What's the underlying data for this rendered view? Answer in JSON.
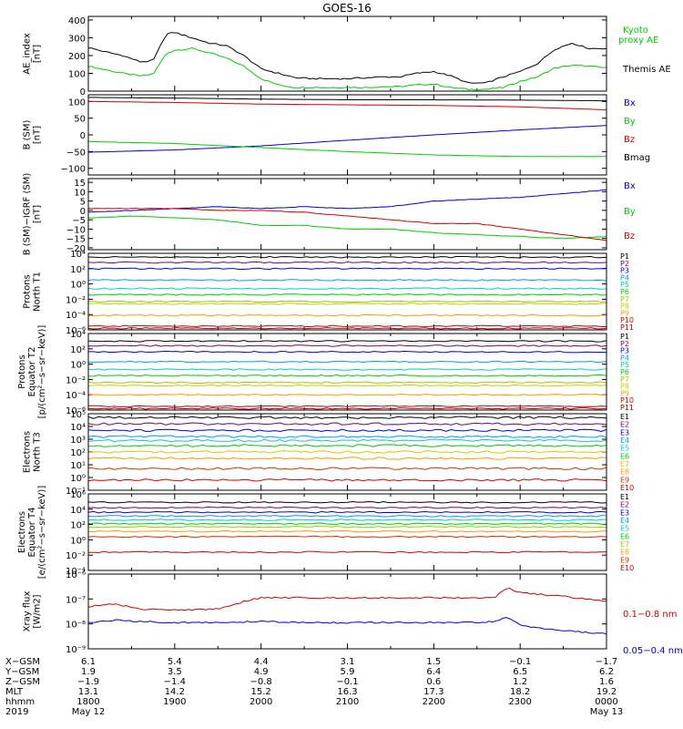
{
  "title": "GOES-16",
  "chart_data": [
    {
      "type": "line",
      "id": "ae",
      "ylabel": [
        "AE_index",
        "[nT]"
      ],
      "ylim": [
        0,
        420
      ],
      "yticks": [
        "0",
        "100",
        "200",
        "300",
        "400"
      ],
      "ytick_values": [
        0,
        100,
        200,
        300,
        400
      ],
      "series": [
        {
          "name": "Kyoto proxy AE",
          "color": "#00cc00",
          "x": [
            18.0,
            18.2,
            18.4,
            18.6,
            18.75,
            18.9,
            19.0,
            19.2,
            19.4,
            19.6,
            19.8,
            20.0,
            20.2,
            20.4,
            20.6,
            20.8,
            21.0,
            21.2,
            21.4,
            21.6,
            21.8,
            22.0,
            22.2,
            22.4,
            22.6,
            22.8,
            23.0,
            23.2,
            23.4,
            23.6,
            23.8,
            24.0
          ],
          "y": [
            140,
            120,
            100,
            85,
            95,
            210,
            230,
            240,
            215,
            185,
            140,
            70,
            35,
            20,
            22,
            20,
            22,
            20,
            25,
            25,
            35,
            40,
            20,
            10,
            10,
            20,
            55,
            80,
            130,
            145,
            140,
            130
          ]
        },
        {
          "name": "Themis AE",
          "color": "#000000",
          "x": [
            18.0,
            18.2,
            18.4,
            18.6,
            18.75,
            18.9,
            19.0,
            19.2,
            19.4,
            19.6,
            19.8,
            20.0,
            20.2,
            20.4,
            20.6,
            20.8,
            21.0,
            21.2,
            21.4,
            21.6,
            21.8,
            22.0,
            22.2,
            22.4,
            22.6,
            22.8,
            23.0,
            23.2,
            23.4,
            23.6,
            23.8,
            24.0
          ],
          "y": [
            245,
            220,
            200,
            165,
            170,
            320,
            330,
            300,
            270,
            255,
            200,
            125,
            100,
            75,
            70,
            70,
            70,
            75,
            80,
            80,
            100,
            110,
            85,
            45,
            45,
            80,
            110,
            155,
            235,
            270,
            240,
            240
          ]
        }
      ]
    },
    {
      "type": "line",
      "id": "b_sm",
      "ylabel": [
        "B (SM)",
        "[nT]"
      ],
      "ylim": [
        -120,
        120
      ],
      "yticks": [
        "−100",
        "−50",
        "0",
        "50",
        "100"
      ],
      "ytick_values": [
        -100,
        -50,
        0,
        50,
        100
      ],
      "series": [
        {
          "name": "Bx",
          "color": "#0000cc",
          "x": [
            18.0,
            19.0,
            20.0,
            21.0,
            22.0,
            23.0,
            24.0
          ],
          "y": [
            -52,
            -45,
            -33,
            -16,
            0,
            15,
            28
          ]
        },
        {
          "name": "By",
          "color": "#00cc00",
          "x": [
            18.0,
            19.0,
            20.0,
            21.0,
            22.0,
            23.0,
            24.0
          ],
          "y": [
            -20,
            -26,
            -38,
            -50,
            -60,
            -65,
            -65
          ]
        },
        {
          "name": "Bz",
          "color": "#cc0000",
          "x": [
            18.0,
            19.0,
            20.0,
            21.0,
            22.0,
            23.0,
            24.0
          ],
          "y": [
            100,
            97,
            92,
            90,
            88,
            84,
            75
          ]
        },
        {
          "name": "Bmag",
          "color": "#000000",
          "x": [
            18.0,
            19.0,
            20.0,
            21.0,
            22.0,
            23.0,
            24.0
          ],
          "y": [
            112,
            110,
            107,
            105,
            105,
            104,
            102
          ]
        }
      ]
    },
    {
      "type": "line",
      "id": "b_igrf",
      "ylabel": [
        "B (SM)−IGRF (SM)",
        "[nT]"
      ],
      "ylim": [
        -21,
        17
      ],
      "yticks": [
        "−20",
        "−15",
        "−10",
        "−5",
        "0",
        "5",
        "10",
        "15"
      ],
      "ytick_values": [
        -20,
        -15,
        -10,
        -5,
        0,
        5,
        10,
        15
      ],
      "series": [
        {
          "name": "Bx",
          "color": "#0000cc",
          "x": [
            18.0,
            18.5,
            19.0,
            19.5,
            20.0,
            20.5,
            21.0,
            21.5,
            22.0,
            22.5,
            23.0,
            23.5,
            24.0
          ],
          "y": [
            -1,
            0,
            1,
            2,
            1,
            2,
            1,
            2,
            5,
            6,
            7,
            9,
            11
          ]
        },
        {
          "name": "By",
          "color": "#00cc00",
          "x": [
            18.0,
            18.5,
            19.0,
            19.5,
            20.0,
            20.5,
            21.0,
            21.5,
            22.0,
            22.5,
            23.0,
            23.5,
            24.0
          ],
          "y": [
            -4,
            -3,
            -4,
            -5,
            -8,
            -8,
            -10,
            -10,
            -12,
            -13,
            -14,
            -15,
            -14
          ]
        },
        {
          "name": "Bz",
          "color": "#cc0000",
          "x": [
            18.0,
            18.5,
            19.0,
            19.5,
            20.0,
            20.5,
            21.0,
            21.5,
            22.0,
            22.5,
            23.0,
            23.5,
            24.0
          ],
          "y": [
            1,
            1,
            1,
            0,
            0,
            -1,
            -3,
            -5,
            -7,
            -7,
            -10,
            -13,
            -16
          ]
        }
      ]
    },
    {
      "type": "line",
      "id": "protons_t1",
      "ylabel": [
        "Protons",
        "North T1"
      ],
      "log": true,
      "ylim": [
        1e-06,
        10000.0
      ],
      "yticks": [
        "10⁻⁶",
        "10⁻⁴",
        "10⁻²",
        "10⁰",
        "10²",
        "10⁴"
      ],
      "ytick_values": [
        -6,
        -4,
        -2,
        0,
        2,
        4
      ],
      "series": [
        {
          "name": "P1",
          "color": "#000000",
          "level": 3.5
        },
        {
          "name": "P2",
          "color": "#770077",
          "level": 2.8
        },
        {
          "name": "P3",
          "color": "#0000cc",
          "level": 2.0
        },
        {
          "name": "P4",
          "color": "#0099ff",
          "level": 0.5
        },
        {
          "name": "P5",
          "color": "#00cccc",
          "level": -0.6
        },
        {
          "name": "P6",
          "color": "#00cc00",
          "level": -1.4
        },
        {
          "name": "P7",
          "color": "#99cc00",
          "level": -2.3
        },
        {
          "name": "P8",
          "color": "#cccc00",
          "level": -2.6
        },
        {
          "name": "P9",
          "color": "#ff9900",
          "level": -4.1
        },
        {
          "name": "P10",
          "color": "#cc0000",
          "level": -5.5
        },
        {
          "name": "P11",
          "color": "#aa0000",
          "level": -5.8
        }
      ]
    },
    {
      "type": "line",
      "id": "protons_t2",
      "ylabel": [
        "Protons",
        "Equator T2",
        "[p/(cm²−s−sr−keV)]"
      ],
      "log": true,
      "ylim": [
        1e-06,
        10000.0
      ],
      "yticks": [
        "10⁻⁶",
        "10⁻⁴",
        "10⁻²",
        "10⁰",
        "10²",
        "10⁴"
      ],
      "ytick_values": [
        -6,
        -4,
        -2,
        0,
        2,
        4
      ],
      "series": [
        {
          "name": "P1",
          "color": "#000000",
          "level": 3.0
        },
        {
          "name": "P2",
          "color": "#770077",
          "level": 2.4
        },
        {
          "name": "P3",
          "color": "#0000cc",
          "level": 1.6
        },
        {
          "name": "P4",
          "color": "#0099ff",
          "level": 0.3
        },
        {
          "name": "P5",
          "color": "#00cccc",
          "level": -0.7
        },
        {
          "name": "P6",
          "color": "#00cc00",
          "level": -1.5
        },
        {
          "name": "P7",
          "color": "#99cc00",
          "level": -2.4
        },
        {
          "name": "P8",
          "color": "#cccc00",
          "level": -2.8
        },
        {
          "name": "P9",
          "color": "#ff9900",
          "level": -4.0
        },
        {
          "name": "P10",
          "color": "#cc0000",
          "level": -5.5
        },
        {
          "name": "P11",
          "color": "#aa0000",
          "level": -5.8
        }
      ]
    },
    {
      "type": "line",
      "id": "electrons_t3",
      "ylabel": [
        "Electrons",
        "North T3"
      ],
      "log": true,
      "ylim": [
        0.1,
        100000.0
      ],
      "yticks": [
        "10⁻¹",
        "10⁰",
        "10¹",
        "10²",
        "10³",
        "10⁴",
        "10⁵"
      ],
      "ytick_values": [
        -1,
        0,
        1,
        2,
        3,
        4,
        5
      ],
      "series": [
        {
          "name": "E1",
          "color": "#000000",
          "level": 4.7
        },
        {
          "name": "E2",
          "color": "#770077",
          "level": 4.2
        },
        {
          "name": "E3",
          "color": "#0000cc",
          "level": 3.7
        },
        {
          "name": "E4",
          "color": "#0099ff",
          "level": 3.2
        },
        {
          "name": "E5",
          "color": "#00cccc",
          "level": 2.9
        },
        {
          "name": "E6",
          "color": "#00cc00",
          "level": 2.5
        },
        {
          "name": "E7",
          "color": "#cccc00",
          "level": 2.0
        },
        {
          "name": "E8",
          "color": "#ff9900",
          "level": 1.5
        },
        {
          "name": "E9",
          "color": "#cc3300",
          "level": 0.7
        },
        {
          "name": "E10",
          "color": "#cc0000",
          "level": -0.2
        }
      ]
    },
    {
      "type": "line",
      "id": "electrons_t4",
      "ylabel": [
        "Electrons",
        "Equator T4",
        "[e/(cm²−s−sr−keV)]"
      ],
      "log": true,
      "ylim": [
        0.0001,
        1000000.0
      ],
      "yticks": [
        "10⁻⁴",
        "10⁻²",
        "10⁰",
        "10²",
        "10⁴",
        "10⁶"
      ],
      "ytick_values": [
        -4,
        -2,
        0,
        2,
        4,
        6
      ],
      "series": [
        {
          "name": "E1",
          "color": "#000000",
          "level": 4.9
        },
        {
          "name": "E2",
          "color": "#770077",
          "level": 4.2
        },
        {
          "name": "E3",
          "color": "#0000cc",
          "level": 3.6
        },
        {
          "name": "E4",
          "color": "#0099ff",
          "level": 3.1
        },
        {
          "name": "E5",
          "color": "#00cccc",
          "level": 2.6
        },
        {
          "name": "E6",
          "color": "#00cc00",
          "level": 2.1
        },
        {
          "name": "E7",
          "color": "#99cc00",
          "level": 1.7
        },
        {
          "name": "E8",
          "color": "#ff9900",
          "level": 1.1
        },
        {
          "name": "E9",
          "color": "#cc3300",
          "level": 0.4
        },
        {
          "name": "E10",
          "color": "#cc0000",
          "level": -1.6
        }
      ]
    },
    {
      "type": "line",
      "id": "xray",
      "ylabel": [
        "Xray flux",
        "[W/m2]"
      ],
      "log": true,
      "ylim": [
        1e-09,
        1e-06
      ],
      "yticks": [
        "10⁻⁹",
        "10⁻⁸",
        "10⁻⁷",
        "10⁻⁶"
      ],
      "ytick_values": [
        -9,
        -8,
        -7,
        -6
      ],
      "series": [
        {
          "name": "0.1−0.8 nm",
          "color": "#cc0000",
          "x": [
            18.0,
            18.3,
            18.6,
            19.0,
            19.5,
            19.8,
            20.0,
            20.5,
            21.0,
            21.5,
            22.0,
            22.5,
            22.7,
            22.85,
            23.0,
            23.5,
            24.0
          ],
          "y": [
            -7.3,
            -7.2,
            -7.4,
            -7.45,
            -7.4,
            -7.1,
            -6.95,
            -6.95,
            -6.95,
            -6.95,
            -6.95,
            -6.95,
            -6.95,
            -6.55,
            -6.75,
            -6.9,
            -7.1
          ]
        },
        {
          "name": "0.05−0.4 nm",
          "color": "#0000cc",
          "x": [
            18.0,
            18.3,
            18.6,
            19.0,
            19.5,
            20.0,
            20.5,
            21.0,
            21.5,
            22.0,
            22.5,
            22.7,
            22.85,
            23.0,
            23.3,
            23.6,
            24.0
          ],
          "y": [
            -7.95,
            -7.85,
            -7.9,
            -7.95,
            -7.95,
            -7.9,
            -7.95,
            -7.95,
            -7.95,
            -7.95,
            -7.95,
            -7.9,
            -7.75,
            -8.05,
            -8.2,
            -8.3,
            -8.4
          ]
        }
      ]
    }
  ],
  "x_axis": {
    "xlim": [
      18.0,
      24.0
    ],
    "row_labels": [
      "X−GSM",
      "Y−GSM",
      "Z−GSM",
      "MLT",
      "hhmm",
      "2019"
    ],
    "ticks": [
      {
        "x": 18.0,
        "values": [
          "6.1",
          "1.9",
          "−1.9",
          "13.1",
          "1800",
          "May 12"
        ]
      },
      {
        "x": 19.0,
        "values": [
          "5.4",
          "3.5",
          "−1.4",
          "14.2",
          "1900",
          ""
        ]
      },
      {
        "x": 20.0,
        "values": [
          "4.4",
          "4.9",
          "−0.8",
          "15.2",
          "2000",
          ""
        ]
      },
      {
        "x": 21.0,
        "values": [
          "3.1",
          "5.9",
          "−0.1",
          "16.3",
          "2100",
          ""
        ]
      },
      {
        "x": 22.0,
        "values": [
          "1.5",
          "6.4",
          "0.6",
          "17.3",
          "2200",
          ""
        ]
      },
      {
        "x": 23.0,
        "values": [
          "−0.1",
          "6.5",
          "1.2",
          "18.2",
          "2300",
          ""
        ]
      },
      {
        "x": 24.0,
        "values": [
          "−1.7",
          "6.2",
          "1.6",
          "19.2",
          "0000",
          "May 13"
        ]
      }
    ]
  },
  "legends": [
    {
      "panel": "ae",
      "entries": [
        {
          "text": "Kyoto",
          "color": "#00cc00"
        },
        {
          "text": "proxy AE",
          "color": "#00cc00"
        },
        {
          "text": "Themis AE",
          "color": "#000000"
        }
      ]
    },
    {
      "panel": "b_sm",
      "entries": [
        {
          "text": "Bx",
          "color": "#0000cc"
        },
        {
          "text": "By",
          "color": "#00cc00"
        },
        {
          "text": "Bz",
          "color": "#cc0000"
        },
        {
          "text": "Bmag",
          "color": "#000000"
        }
      ]
    },
    {
      "panel": "b_igrf",
      "entries": [
        {
          "text": "Bx",
          "color": "#0000cc"
        },
        {
          "text": "By",
          "color": "#00cc00"
        },
        {
          "text": "Bz",
          "color": "#cc0000"
        }
      ]
    },
    {
      "panel": "xray",
      "entries": [
        {
          "text": "0.1−0.8 nm",
          "color": "#cc0000"
        },
        {
          "text": "0.05−0.4 nm",
          "color": "#0000cc"
        }
      ]
    }
  ]
}
